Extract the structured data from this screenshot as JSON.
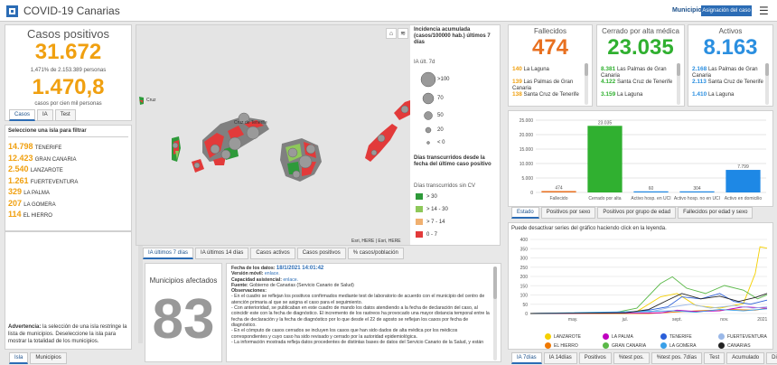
{
  "header": {
    "title": "COVID-19 Canarias",
    "municipio_label": "Municipio",
    "assign_label": "Asignación del caso"
  },
  "casos": {
    "title": "Casos positivos",
    "total": "31.672",
    "pct_text": "1,471% de 2.153.389 personas",
    "rate": "1.470,8",
    "rate_label": "casos por cien mil personas"
  },
  "casos_tabs": [
    "Casos",
    "IA",
    "Test"
  ],
  "islands": {
    "header": "Seleccione una isla para filtrar",
    "items": [
      {
        "value": "14.798",
        "name": "TENERIFE"
      },
      {
        "value": "12.423",
        "name": "GRAN CANARIA"
      },
      {
        "value": "2.540",
        "name": "LANZAROTE"
      },
      {
        "value": "1.261",
        "name": "FUERTEVENTURA"
      },
      {
        "value": "329",
        "name": "LA PALMA"
      },
      {
        "value": "207",
        "name": "LA GOMERA"
      },
      {
        "value": "114",
        "name": "EL HIERRO"
      }
    ]
  },
  "advertencia": {
    "bold": "Advertencia:",
    "text": " la selección de una isla restringe la lista de municipios. Deseleccione la isla para mostrar la totalidad de los municipios."
  },
  "left_tabs": [
    "Isla",
    "Municipios"
  ],
  "map": {
    "credit": "Esri, HERE | Esri, HERE",
    "island_label": "Cruz de Tenerife",
    "island_label2": "Cruz",
    "legend_title": "Incidencia acumulada (casos/100000 hab.) últimos 7 días",
    "legend_sub": "IA últ. 7d",
    "sizes": [
      ">100",
      "70",
      "50",
      "20",
      "< 0"
    ],
    "legend2_title": "Días transcurridos desde la fecha del último caso positivo",
    "legend2_sub": "Días transcurridos sin CV",
    "ranges": [
      {
        "label": "> 30",
        "color": "#2e9a3a"
      },
      {
        "label": "> 14 - 30",
        "color": "#8ec85a"
      },
      {
        "label": "> 7 - 14",
        "color": "#f0b070"
      },
      {
        "label": "0 - 7",
        "color": "#e23a3a"
      }
    ]
  },
  "map_tabs": [
    "IA últimos 7 días",
    "IA últimos 14 días",
    "Casos activos",
    "Casos positivos",
    "% casos/población"
  ],
  "municipios": {
    "title": "Municipios afectados",
    "value": "83"
  },
  "info": {
    "lines": [
      {
        "label": "Fecha de los datos:",
        "value": "18/1/2021 14:01:42"
      },
      {
        "label": "Versión móvil:",
        "value": "enlace."
      },
      {
        "label": "Capacidad asistencial:",
        "value": "enlace."
      },
      {
        "label": "Fuente:",
        "value": " Gobierno de Canarias (Servicio Canario de Salud)"
      },
      {
        "label": "Observaciones:",
        "value": ""
      }
    ],
    "paras": [
      "- En el cuadro se reflejan los positivos confirmados mediante test de laboratorio de acuerdo con el municipio del centro de atención primaria al que se asigna el caso para el seguimiento.",
      "- Con anterioridad, se publicaban en este cuadro de mando los datos atendiendo a la fecha de declaración del caso, al coincidir este con la fecha de diagnóstico. El incremento de los rastreos ha provocado una mayor distancia temporal entre la fecha de declaración y la fecha de diagnóstico por lo que desde el 22 de agosto se reflejan los casos por fecha de diagnóstico.",
      "- En el cómputo de casos cerrados se incluyen los casos que han sido dados de alta médica por los médicos correspondientes y cuyo caso ha sido revisado y cerrado por la autoridad epidemiológica.",
      "- La información mostrada refleja datos procedentes de distintas bases de datos del Servicio Canario de la Salud, y están"
    ]
  },
  "fallecidos": {
    "title": "Fallecidos",
    "value": "474",
    "items": [
      {
        "v": "140",
        "n": "La Laguna"
      },
      {
        "v": "139",
        "n": "Las Palmas de Gran Canaria"
      },
      {
        "v": "138",
        "n": "Santa Cruz de Tenerife"
      }
    ]
  },
  "cerrado": {
    "title": "Cerrado por alta médica",
    "value": "23.035",
    "items": [
      {
        "v": "8.381",
        "n": "Las Palmas de Gran Canaria"
      },
      {
        "v": "4.122",
        "n": "Santa Cruz de Tenerife"
      },
      {
        "v": "3.159",
        "n": "La Laguna"
      }
    ]
  },
  "activos": {
    "title": "Activos",
    "value": "8.163",
    "items": [
      {
        "v": "2.168",
        "n": "Las Palmas de Gran Canaria"
      },
      {
        "v": "2.113",
        "n": "Santa Cruz de Tenerife"
      },
      {
        "v": "1.410",
        "n": "La Laguna"
      }
    ]
  },
  "estado_tabs": [
    "Estado",
    "Positivos por sexo",
    "Positivos por grupo de edad",
    "Fallecidos por edad y sexo"
  ],
  "series_note": "Puede desactivar series del gráfico haciendo click en la leyenda.",
  "series_tabs": [
    "IA 7días",
    "IA 14días",
    "Positivos",
    "%test pos.",
    "%test pos. 7días",
    "Test",
    "Acumulado",
    "Diario"
  ],
  "legend": [
    {
      "name": "LANZAROTE",
      "color": "#f5d000"
    },
    {
      "name": "LA PALMA",
      "color": "#c000c0"
    },
    {
      "name": "TENERIFE",
      "color": "#2b5fd9"
    },
    {
      "name": "FUERTEVENTURA",
      "color": "#9ab8e8"
    },
    {
      "name": "EL HIERRO",
      "color": "#f07800"
    },
    {
      "name": "GRAN CANARIA",
      "color": "#5ab848"
    },
    {
      "name": "LA GOMERA",
      "color": "#3aa0e8"
    },
    {
      "name": "CANARIAS",
      "color": "#222222"
    }
  ],
  "colors": {
    "accent": "#2b6cb5",
    "orange": "#f0a010",
    "red": "#e87020",
    "green": "#30b030",
    "blue": "#2b8fe0"
  },
  "chart_data": [
    {
      "type": "bar",
      "categories": [
        "Fallecido",
        "Cerrado por alta",
        "Activo hosp. en UCI",
        "Activo hosp. no en UCI",
        "Activo en domicilio"
      ],
      "values": [
        474,
        23035,
        60,
        304,
        7799
      ],
      "labels": [
        "474",
        "23.035",
        "60",
        "304",
        "7.799"
      ],
      "colors": [
        "#e87020",
        "#30b030",
        "#1e88e5",
        "#1e88e5",
        "#1e88e5"
      ],
      "ylim": [
        0,
        25000
      ],
      "yticks": [
        "0",
        "5.000",
        "10.000",
        "15.000",
        "20.000",
        "25.000"
      ]
    },
    {
      "type": "line",
      "x": [
        "may.",
        "jul.",
        "sept.",
        "nov.",
        "2021"
      ],
      "yticks": [
        "0",
        "50",
        "100",
        "150",
        "200",
        "250",
        "300",
        "350",
        "400"
      ],
      "ylim": [
        0,
        400
      ]
    }
  ]
}
